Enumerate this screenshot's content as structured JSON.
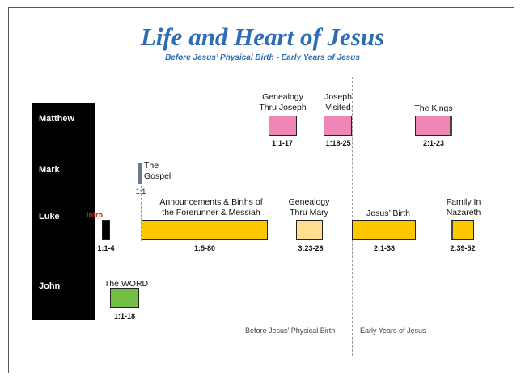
{
  "title": "Life and Heart of Jesus",
  "subtitle": "Before Jesus’ Physical Birth - Early Years of Jesus",
  "gospels": [
    "Matthew",
    "Mark",
    "Luke",
    "John"
  ],
  "intro_label": "Intro",
  "events": {
    "genealogy_joseph": {
      "label_1": "Genealogy",
      "label_2": "Thru Joseph",
      "ref": "1:1-17"
    },
    "joseph_visited": {
      "label_1": "Joseph",
      "label_2": "Visited",
      "ref": "1:18-25"
    },
    "the_kings": {
      "label": "The Kings",
      "ref": "2:1-23"
    },
    "the_gospel": {
      "label_1": "The",
      "label_2": "Gospel",
      "ref": "1:1"
    },
    "intro": {
      "ref": "1:1-4"
    },
    "announcements": {
      "label_1": "Announcements & Births  of",
      "label_2": "the Forerunner & Messiah",
      "ref": "1:5-80"
    },
    "genealogy_mary": {
      "label_1": "Genealogy",
      "label_2": "Thru Mary",
      "ref": "3:23-28"
    },
    "jesus_birth": {
      "label": "Jesus’ Birth",
      "ref": "2:1-38"
    },
    "family_nazareth": {
      "label_1": "Family In",
      "label_2": "Nazareth",
      "ref": "2:39-52"
    },
    "the_word": {
      "label": "The WORD",
      "ref": "1:1-18"
    }
  },
  "eras": {
    "before": "Before Jesus’ Physical Birth",
    "early": "Early Years of Jesus"
  },
  "colors": {
    "title": "#2e6db5",
    "pink": "#f086b6",
    "yellow": "#fcc603",
    "light_yellow": "#ffde8d",
    "green": "#73bf45",
    "intro": "#c8201e"
  }
}
